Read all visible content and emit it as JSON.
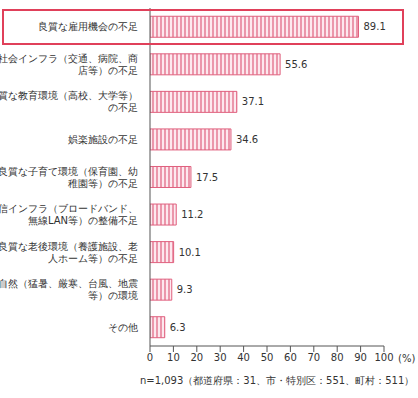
{
  "chart_data": {
    "type": "bar",
    "orientation": "horizontal",
    "categories": [
      "良質な雇用機会の不足",
      "社会インフラ（交通、病院、商店等）の不足",
      "良質な教育環境（高校、大学等）の不足",
      "娯楽施設の不足",
      "良質な子育て環境（保育園、幼稚園等）の不足",
      "通信インフラ（ブロードバンド、無線LAN等）の整備不足",
      "良質な老後環境（養護施設、老人ホーム等）の不足",
      "自然（猛暑、厳寒、台風、地震等）の環境",
      "その他"
    ],
    "values": [
      89.1,
      55.6,
      37.1,
      34.6,
      17.5,
      11.2,
      10.1,
      9.3,
      6.3
    ],
    "color": "#e0607e",
    "xlim": [
      0,
      100
    ],
    "xticks": [
      0,
      10,
      20,
      30,
      40,
      50,
      60,
      70,
      80,
      90,
      100
    ],
    "x_label": "(%)",
    "annotations": [
      "n=1,093（都道府県：31、市・特別区：551、町村：511）"
    ],
    "data_labels": true,
    "grid": false
  }
}
